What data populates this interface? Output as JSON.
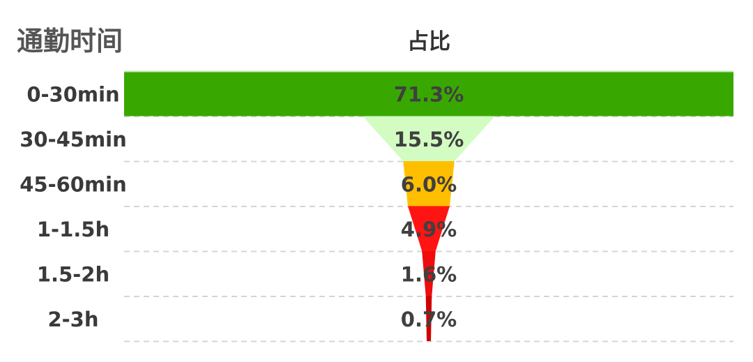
{
  "chart_data": {
    "type": "funnel",
    "title": "通勤时间",
    "value_header": "占比",
    "categories": [
      "0-30min",
      "30-45min",
      "45-60min",
      "1-1.5h",
      "1.5-2h",
      "2-3h"
    ],
    "values": [
      71.3,
      15.5,
      6.0,
      4.9,
      1.6,
      0.7
    ],
    "value_labels": [
      "71.3%",
      "15.5%",
      "6.0%",
      "4.9%",
      "1.6%",
      "0.7%"
    ],
    "unit": "%",
    "colors": [
      "#38a800",
      "#d2fcc2",
      "#ffbf00",
      "#ff1414",
      "#ee0c0c",
      "#d00000"
    ],
    "grid": true
  }
}
